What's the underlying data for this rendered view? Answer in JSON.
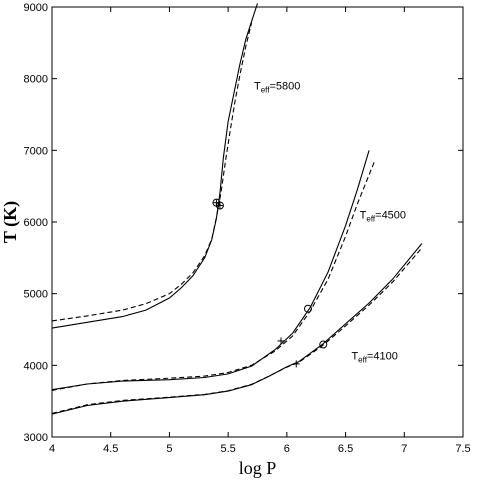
{
  "chart_data": {
    "type": "line",
    "xlabel": "log P",
    "ylabel": "T (K)",
    "xlim": [
      4,
      7.5
    ],
    "ylim": [
      3000,
      9000
    ],
    "xticks": [
      "4",
      "4.5",
      "5",
      "5.5",
      "6",
      "6.5",
      "7",
      "7.5"
    ],
    "yticks": [
      "3000",
      "4000",
      "5000",
      "6000",
      "7000",
      "8000",
      "9000"
    ],
    "grid": false,
    "series": [
      {
        "group": "Teff=5800",
        "style": "solid",
        "x": [
          4.0,
          4.3,
          4.6,
          4.8,
          5.0,
          5.1,
          5.2,
          5.3,
          5.36,
          5.4,
          5.43,
          5.46,
          5.5,
          5.55,
          5.6,
          5.65,
          5.7,
          5.75
        ],
        "y": [
          4520,
          4600,
          4680,
          4770,
          4940,
          5080,
          5250,
          5500,
          5750,
          6050,
          6400,
          6900,
          7400,
          7800,
          8200,
          8550,
          8800,
          9050
        ]
      },
      {
        "group": "Teff=5800",
        "style": "dashed",
        "x": [
          4.0,
          4.3,
          4.6,
          4.8,
          5.0,
          5.1,
          5.2,
          5.3,
          5.36,
          5.4,
          5.44,
          5.48,
          5.52,
          5.56,
          5.6,
          5.65,
          5.7
        ],
        "y": [
          4620,
          4690,
          4770,
          4860,
          5000,
          5130,
          5290,
          5530,
          5760,
          6060,
          6420,
          6880,
          7300,
          7700,
          8050,
          8450,
          8780
        ]
      },
      {
        "group": "Teff=4500",
        "style": "solid",
        "x": [
          4.0,
          4.3,
          4.6,
          5.0,
          5.3,
          5.5,
          5.7,
          5.9,
          6.05,
          6.2,
          6.35,
          6.5,
          6.6,
          6.7
        ],
        "y": [
          3660,
          3740,
          3780,
          3800,
          3830,
          3880,
          3990,
          4220,
          4450,
          4810,
          5300,
          5950,
          6450,
          7000
        ]
      },
      {
        "group": "Teff=4500",
        "style": "dashed",
        "x": [
          4.0,
          4.3,
          4.6,
          5.0,
          5.3,
          5.5,
          5.7,
          5.9,
          6.05,
          6.2,
          6.35,
          6.5,
          6.6,
          6.75
        ],
        "y": [
          3650,
          3740,
          3790,
          3820,
          3850,
          3900,
          4000,
          4200,
          4410,
          4760,
          5200,
          5800,
          6250,
          6860
        ]
      },
      {
        "group": "Teff=4100",
        "style": "solid",
        "x": [
          4.0,
          4.3,
          4.6,
          5.0,
          5.3,
          5.5,
          5.7,
          5.85,
          6.0,
          6.1,
          6.3,
          6.5,
          6.7,
          6.9,
          7.15
        ],
        "y": [
          3320,
          3440,
          3500,
          3550,
          3590,
          3640,
          3730,
          3850,
          3980,
          4050,
          4290,
          4580,
          4870,
          5200,
          5700
        ]
      },
      {
        "group": "Teff=4100",
        "style": "dashed",
        "x": [
          4.0,
          4.3,
          4.6,
          5.0,
          5.3,
          5.5,
          5.7,
          5.85,
          6.0,
          6.1,
          6.3,
          6.5,
          6.7,
          6.9,
          7.15
        ],
        "y": [
          3330,
          3450,
          3510,
          3555,
          3595,
          3645,
          3735,
          3850,
          3975,
          4040,
          4270,
          4550,
          4840,
          5160,
          5640
        ]
      }
    ],
    "markers": [
      {
        "shape": "circle-cross",
        "x": 5.4,
        "y": 6270
      },
      {
        "shape": "circle-cross",
        "x": 5.43,
        "y": 6230
      },
      {
        "shape": "circle",
        "x": 6.18,
        "y": 4790
      },
      {
        "shape": "plus",
        "x": 5.95,
        "y": 4340
      },
      {
        "shape": "circle",
        "x": 6.31,
        "y": 4290
      },
      {
        "shape": "plus",
        "x": 6.08,
        "y": 4020
      }
    ],
    "annotations": [
      {
        "base": "T",
        "sub": "eff",
        "value": "=5800",
        "x": 5.72,
        "y": 7850
      },
      {
        "base": "T",
        "sub": "eff",
        "value": "=4500",
        "x": 6.62,
        "y": 6050
      },
      {
        "base": "T",
        "sub": "eff",
        "value": "=4100",
        "x": 6.55,
        "y": 4080
      }
    ]
  }
}
